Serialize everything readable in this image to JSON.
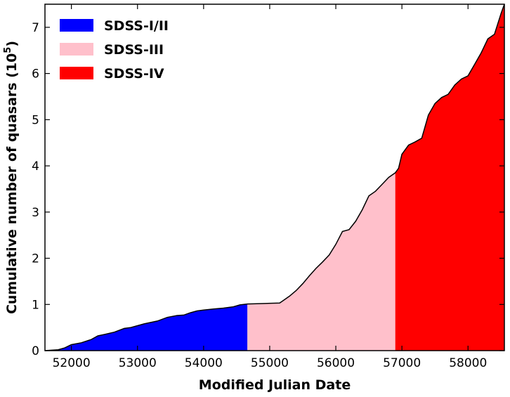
{
  "chart_data": {
    "type": "area",
    "title": "",
    "xlabel": "Modified Julian Date",
    "ylabel": "Cumulative number of quasars (10",
    "ylabel_exp": "5",
    "ylabel_close": ")",
    "xlim": [
      51600,
      58550
    ],
    "ylim": [
      0,
      7.5
    ],
    "xticks": [
      52000,
      53000,
      54000,
      55000,
      56000,
      57000,
      58000
    ],
    "yticks": [
      0,
      1,
      2,
      3,
      4,
      5,
      6,
      7
    ],
    "legend_position": "top-left",
    "series": [
      {
        "name": "SDSS-I/II",
        "color": "#0000ff",
        "x": [
          51600,
          51800,
          51900,
          52000,
          52150,
          52300,
          52400,
          52500,
          52650,
          52800,
          52900,
          53100,
          53300,
          53450,
          53600,
          53700,
          53800,
          53900,
          54000,
          54150,
          54300,
          54450,
          54550,
          54663
        ],
        "y": [
          0.0,
          0.02,
          0.06,
          0.13,
          0.17,
          0.24,
          0.32,
          0.35,
          0.4,
          0.48,
          0.5,
          0.58,
          0.64,
          0.72,
          0.76,
          0.77,
          0.82,
          0.86,
          0.88,
          0.9,
          0.92,
          0.95,
          0.99,
          1.01
        ]
      },
      {
        "name": "SDSS-III",
        "color": "#ffc0cb",
        "x": [
          54663,
          54900,
          55150,
          55200,
          55300,
          55400,
          55500,
          55600,
          55700,
          55800,
          55900,
          56000,
          56100,
          56200,
          56300,
          56400,
          56500,
          56600,
          56700,
          56800,
          56900
        ],
        "y": [
          1.01,
          1.02,
          1.03,
          1.08,
          1.18,
          1.3,
          1.45,
          1.62,
          1.78,
          1.92,
          2.07,
          2.3,
          2.58,
          2.62,
          2.8,
          3.05,
          3.35,
          3.45,
          3.6,
          3.75,
          3.85
        ]
      },
      {
        "name": "SDSS-IV",
        "color": "#ff0000",
        "x": [
          56900,
          56950,
          57000,
          57100,
          57200,
          57300,
          57400,
          57500,
          57600,
          57700,
          57800,
          57900,
          58000,
          58100,
          58200,
          58300,
          58400,
          58500,
          58550
        ],
        "y": [
          3.85,
          3.95,
          4.25,
          4.45,
          4.52,
          4.6,
          5.1,
          5.35,
          5.48,
          5.55,
          5.75,
          5.88,
          5.95,
          6.2,
          6.45,
          6.75,
          6.85,
          7.3,
          7.5
        ]
      }
    ]
  }
}
